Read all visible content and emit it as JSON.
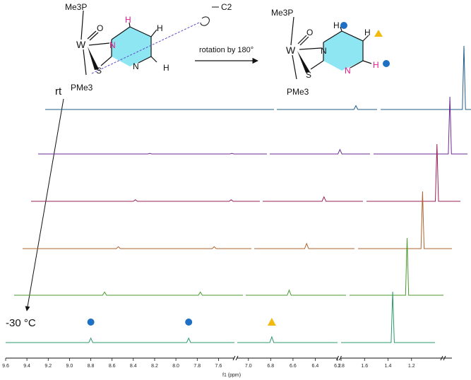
{
  "chart_data": {
    "type": "line",
    "title": "",
    "xlabel": "f1 (ppm)",
    "ylabel": "",
    "axis_reversed": true,
    "axis_segments": [
      {
        "from": 9.6,
        "to": 7.45
      },
      {
        "from": 7.1,
        "to": 6.2
      },
      {
        "from": 1.8,
        "to": 1.0
      }
    ],
    "x_ticks": [
      {
        "value": 9.6,
        "label": "9.6"
      },
      {
        "value": 9.4,
        "label": "9.4"
      },
      {
        "value": 9.2,
        "label": "9.2"
      },
      {
        "value": 9.0,
        "label": "9.0"
      },
      {
        "value": 8.8,
        "label": "8.8"
      },
      {
        "value": 8.6,
        "label": "8.6"
      },
      {
        "value": 8.4,
        "label": "8.4"
      },
      {
        "value": 8.2,
        "label": "8.2"
      },
      {
        "value": 8.0,
        "label": "8.0"
      },
      {
        "value": 7.8,
        "label": "7.8"
      },
      {
        "value": 7.6,
        "label": "7.6"
      },
      {
        "value": 7.0,
        "label": "7.0"
      },
      {
        "value": 6.8,
        "label": "6.8"
      },
      {
        "value": 6.6,
        "label": "6.6"
      },
      {
        "value": 6.4,
        "label": "6.4"
      },
      {
        "value": 6.2,
        "label": "6.2"
      },
      {
        "value": 1.8,
        "label": "1.8"
      },
      {
        "value": 1.6,
        "label": "1.6"
      },
      {
        "value": 1.4,
        "label": "1.4"
      },
      {
        "value": 1.2,
        "label": "1.2"
      }
    ],
    "series": [
      {
        "color": "#1f5d8a",
        "peaks": [
          {
            "ppm": 6.39,
            "height": 0.06
          },
          {
            "ppm": 1.09,
            "height": 1.0
          }
        ]
      },
      {
        "color": "#6b2a8f",
        "peaks": [
          {
            "ppm": 8.55,
            "height": 0.01
          },
          {
            "ppm": 7.78,
            "height": 0.01
          },
          {
            "ppm": 6.47,
            "height": 0.07
          },
          {
            "ppm": 1.15,
            "height": 0.9
          }
        ]
      },
      {
        "color": "#9a1f5a",
        "peaks": [
          {
            "ppm": 8.62,
            "height": 0.025
          },
          {
            "ppm": 7.72,
            "height": 0.025
          },
          {
            "ppm": 6.55,
            "height": 0.07
          },
          {
            "ppm": 1.2,
            "height": 0.9
          }
        ]
      },
      {
        "color": "#b0622a",
        "peaks": [
          {
            "ppm": 8.7,
            "height": 0.03
          },
          {
            "ppm": 7.8,
            "height": 0.03
          },
          {
            "ppm": 6.63,
            "height": 0.08
          },
          {
            "ppm": 1.25,
            "height": 0.9
          }
        ]
      },
      {
        "color": "#4a9a2c",
        "peaks": [
          {
            "ppm": 8.75,
            "height": 0.05
          },
          {
            "ppm": 7.85,
            "height": 0.05
          },
          {
            "ppm": 6.71,
            "height": 0.08
          },
          {
            "ppm": 1.31,
            "height": 0.9
          }
        ]
      },
      {
        "color": "#2a9a6a",
        "peaks": [
          {
            "ppm": 8.8,
            "height": 0.07
          },
          {
            "ppm": 7.88,
            "height": 0.07
          },
          {
            "ppm": 6.79,
            "height": 0.09
          },
          {
            "ppm": 1.36,
            "height": 0.8
          }
        ]
      }
    ],
    "annotations": {
      "temp_top": "rt",
      "temp_bottom": "-30 °C",
      "arrow_label": "rotation by 180°",
      "markers": [
        {
          "shape": "circle",
          "color": "#1f6fc4",
          "ppm": 8.8
        },
        {
          "shape": "circle",
          "color": "#1f6fc4",
          "ppm": 7.88
        },
        {
          "shape": "triangle",
          "color": "#f2b90f",
          "ppm": 6.79
        }
      ]
    }
  },
  "structures": {
    "left": {
      "pme3_top": "Me3P",
      "pme3_bottom": "PMe3",
      "metal": "W",
      "oxo": "O",
      "sulfur": "S",
      "n_ring": "N",
      "n_coord": "N",
      "h_top": "H",
      "h_right": "H",
      "h_bottom": "H",
      "axis_label": "C2"
    },
    "right": {
      "pme3_top": "Me3P",
      "pme3_bottom": "PMe3",
      "metal": "W",
      "oxo": "O",
      "sulfur": "S",
      "n_ring": "N",
      "n_coord": "N",
      "h_top": "H",
      "h_right": "H",
      "h_bottom": "H"
    }
  }
}
